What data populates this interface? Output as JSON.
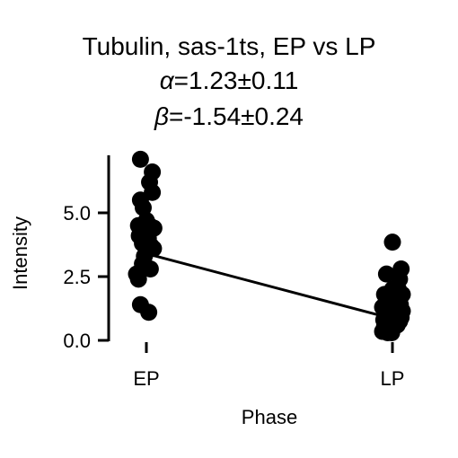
{
  "chart_data": {
    "type": "scatter",
    "title": "Tubulin, sas-1ts, EP vs LP",
    "subtitle_alpha": {
      "symbol": "α",
      "text": "=1.23±0.11"
    },
    "subtitle_beta": {
      "symbol": "β",
      "text": "=-1.54±0.24"
    },
    "xlabel": "Phase",
    "ylabel": "Intensity",
    "categories": [
      "EP",
      "LP"
    ],
    "ylim": [
      0,
      7.4
    ],
    "yticks": [
      {
        "value": 0.0,
        "label": "0.0"
      },
      {
        "value": 2.5,
        "label": "2.5"
      },
      {
        "value": 5.0,
        "label": "5.0"
      }
    ],
    "grid": false,
    "point_color": "#000000",
    "line_color": "#000000",
    "series": [
      {
        "category": "EP",
        "points": [
          {
            "jitter": -0.15,
            "y": 7.1
          },
          {
            "jitter": 0.15,
            "y": 6.6
          },
          {
            "jitter": 0.08,
            "y": 6.2
          },
          {
            "jitter": 0.15,
            "y": 5.8
          },
          {
            "jitter": -0.15,
            "y": 5.5
          },
          {
            "jitter": -0.08,
            "y": 5.2
          },
          {
            "jitter": 0.0,
            "y": 4.7
          },
          {
            "jitter": -0.2,
            "y": 4.5
          },
          {
            "jitter": 0.08,
            "y": 4.5
          },
          {
            "jitter": 0.19,
            "y": 4.4
          },
          {
            "jitter": -0.05,
            "y": 4.3
          },
          {
            "jitter": -0.18,
            "y": 4.1
          },
          {
            "jitter": 0.05,
            "y": 4.0
          },
          {
            "jitter": -0.1,
            "y": 3.8
          },
          {
            "jitter": 0.12,
            "y": 3.7
          },
          {
            "jitter": 0.0,
            "y": 3.5
          },
          {
            "jitter": 0.18,
            "y": 3.6
          },
          {
            "jitter": -0.05,
            "y": 3.3
          },
          {
            "jitter": -0.1,
            "y": 3.0
          },
          {
            "jitter": 0.1,
            "y": 2.8
          },
          {
            "jitter": -0.25,
            "y": 2.6
          },
          {
            "jitter": -0.2,
            "y": 2.4
          },
          {
            "jitter": -0.15,
            "y": 1.4
          },
          {
            "jitter": 0.06,
            "y": 1.1
          }
        ]
      },
      {
        "category": "LP",
        "points": [
          {
            "jitter": 0.0,
            "y": 3.85
          },
          {
            "jitter": 0.22,
            "y": 2.8
          },
          {
            "jitter": -0.15,
            "y": 2.6
          },
          {
            "jitter": 0.18,
            "y": 2.4
          },
          {
            "jitter": 0.0,
            "y": 2.0
          },
          {
            "jitter": 0.15,
            "y": 2.0
          },
          {
            "jitter": -0.2,
            "y": 1.8
          },
          {
            "jitter": 0.25,
            "y": 1.8
          },
          {
            "jitter": 0.08,
            "y": 1.6
          },
          {
            "jitter": -0.12,
            "y": 1.5
          },
          {
            "jitter": 0.2,
            "y": 1.4
          },
          {
            "jitter": -0.25,
            "y": 1.3
          },
          {
            "jitter": 0.05,
            "y": 1.3
          },
          {
            "jitter": -0.05,
            "y": 1.2
          },
          {
            "jitter": 0.25,
            "y": 1.15
          },
          {
            "jitter": 0.14,
            "y": 1.1
          },
          {
            "jitter": -0.18,
            "y": 1.0
          },
          {
            "jitter": -0.02,
            "y": 0.95
          },
          {
            "jitter": 0.22,
            "y": 0.9
          },
          {
            "jitter": 0.1,
            "y": 0.85
          },
          {
            "jitter": -0.22,
            "y": 0.8
          },
          {
            "jitter": 0.18,
            "y": 0.75
          },
          {
            "jitter": -0.1,
            "y": 0.7
          },
          {
            "jitter": 0.02,
            "y": 0.65
          },
          {
            "jitter": 0.12,
            "y": 0.6
          },
          {
            "jitter": -0.2,
            "y": 0.55
          },
          {
            "jitter": -0.05,
            "y": 0.5
          },
          {
            "jitter": -0.25,
            "y": 0.35
          },
          {
            "jitter": -0.12,
            "y": 0.3
          },
          {
            "jitter": -0.02,
            "y": 0.3
          }
        ]
      }
    ],
    "fit_line": {
      "from": {
        "category": "EP",
        "y": 3.4
      },
      "to": {
        "category": "LP",
        "y": 0.85
      }
    }
  }
}
